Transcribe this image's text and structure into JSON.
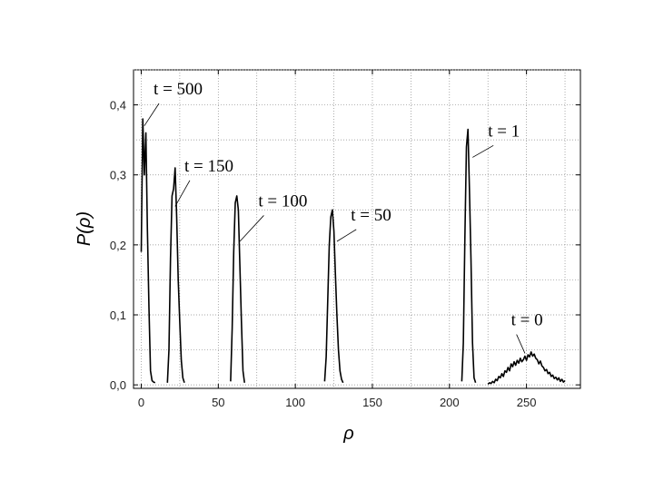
{
  "chart_data": {
    "type": "line",
    "xlabel": "ρ",
    "ylabel": "P(ρ)",
    "xlim": [
      -5,
      285
    ],
    "ylim": [
      -0.005,
      0.45
    ],
    "grid": true,
    "xticks": [
      0,
      50,
      100,
      150,
      200,
      250
    ],
    "xtick_labels": [
      "0",
      "50",
      "100",
      "150",
      "200",
      "250"
    ],
    "yticks": [
      0.0,
      0.1,
      0.2,
      0.3,
      0.4
    ],
    "ytick_labels": [
      "0,0",
      "0,1",
      "0,2",
      "0,3",
      "0,4"
    ],
    "series": [
      {
        "x": [
          0,
          1,
          2,
          3,
          4,
          5,
          6,
          7,
          8,
          9
        ],
        "y": [
          0.19,
          0.38,
          0.3,
          0.36,
          0.22,
          0.11,
          0.02,
          0.006,
          0.004,
          0.003
        ]
      },
      {
        "x": [
          17,
          18,
          19,
          20,
          21,
          22,
          23,
          24,
          25,
          26,
          27,
          28
        ],
        "y": [
          0.003,
          0.05,
          0.18,
          0.27,
          0.28,
          0.31,
          0.24,
          0.15,
          0.09,
          0.035,
          0.01,
          0.003
        ]
      },
      {
        "x": [
          58,
          59,
          60,
          61,
          62,
          63,
          64,
          65,
          66,
          67
        ],
        "y": [
          0.005,
          0.08,
          0.19,
          0.26,
          0.27,
          0.25,
          0.17,
          0.09,
          0.02,
          0.003
        ]
      },
      {
        "x": [
          119,
          120,
          121,
          122,
          123,
          124,
          125,
          126,
          127,
          128,
          129,
          130,
          131
        ],
        "y": [
          0.005,
          0.04,
          0.12,
          0.2,
          0.24,
          0.25,
          0.22,
          0.16,
          0.1,
          0.05,
          0.02,
          0.008,
          0.003
        ]
      },
      {
        "x": [
          208,
          209,
          210,
          211,
          212,
          213,
          214,
          215,
          216,
          217
        ],
        "y": [
          0.005,
          0.06,
          0.21,
          0.34,
          0.365,
          0.28,
          0.18,
          0.06,
          0.01,
          0.003
        ]
      },
      {
        "x": [
          225,
          226,
          227,
          228,
          229,
          230,
          231,
          232,
          233,
          234,
          235,
          236,
          237,
          238,
          239,
          240,
          241,
          242,
          243,
          244,
          245,
          246,
          247,
          248,
          249,
          250,
          251,
          252,
          253,
          254,
          255,
          256,
          257,
          258,
          259,
          260,
          261,
          262,
          263,
          264,
          265,
          266,
          267,
          268,
          269,
          270,
          271,
          272,
          273,
          274,
          275
        ],
        "y": [
          0.001,
          0.003,
          0.002,
          0.005,
          0.003,
          0.008,
          0.006,
          0.012,
          0.01,
          0.016,
          0.012,
          0.02,
          0.018,
          0.025,
          0.02,
          0.03,
          0.026,
          0.033,
          0.028,
          0.035,
          0.031,
          0.038,
          0.033,
          0.036,
          0.041,
          0.035,
          0.043,
          0.04,
          0.047,
          0.041,
          0.044,
          0.038,
          0.036,
          0.03,
          0.034,
          0.027,
          0.025,
          0.02,
          0.022,
          0.016,
          0.018,
          0.012,
          0.014,
          0.009,
          0.011,
          0.007,
          0.01,
          0.005,
          0.008,
          0.004,
          0.006
        ]
      }
    ],
    "annotations": [
      {
        "text": "t = 500",
        "x": 8,
        "y": 0.415,
        "to": [
          2,
          0.37
        ]
      },
      {
        "text": "t = 150",
        "x": 28,
        "y": 0.305,
        "to": [
          22,
          0.255
        ]
      },
      {
        "text": "t = 100",
        "x": 76,
        "y": 0.255,
        "to": [
          64,
          0.205
        ]
      },
      {
        "text": "t = 50",
        "x": 136,
        "y": 0.235,
        "to": [
          127,
          0.205
        ]
      },
      {
        "text": "t = 1",
        "x": 225,
        "y": 0.355,
        "to": [
          215,
          0.325
        ]
      },
      {
        "text": "t = 0",
        "x": 240,
        "y": 0.085,
        "to": [
          249,
          0.045
        ]
      }
    ]
  }
}
